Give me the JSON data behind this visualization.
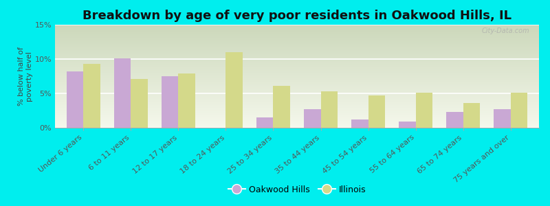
{
  "title": "Breakdown by age of very poor residents in Oakwood Hills, IL",
  "ylabel": "% below half of\npoverty level",
  "categories": [
    "Under 6 years",
    "6 to 11 years",
    "12 to 17 years",
    "18 to 24 years",
    "25 to 34 years",
    "35 to 44 years",
    "45 to 54 years",
    "55 to 64 years",
    "65 to 74 years",
    "75 years and over"
  ],
  "oakwood_hills": [
    8.2,
    10.1,
    7.5,
    0.0,
    1.5,
    2.7,
    1.2,
    0.9,
    2.3,
    2.7
  ],
  "illinois": [
    9.3,
    7.1,
    7.9,
    11.0,
    6.1,
    5.3,
    4.7,
    5.1,
    3.6,
    5.1
  ],
  "bar_color_oakwood": "#c9a8d4",
  "bar_color_illinois": "#d4d98a",
  "background_outer": "#00eeee",
  "background_plot_top": "#ccd8bb",
  "background_plot_bottom": "#f5f8ec",
  "ylim": [
    0,
    15
  ],
  "yticks": [
    0,
    5,
    10,
    15
  ],
  "ytick_labels": [
    "0%",
    "5%",
    "10%",
    "15%"
  ],
  "title_fontsize": 13,
  "axis_label_fontsize": 8,
  "tick_fontsize": 8,
  "legend_fontsize": 9,
  "watermark": "City-Data.com"
}
